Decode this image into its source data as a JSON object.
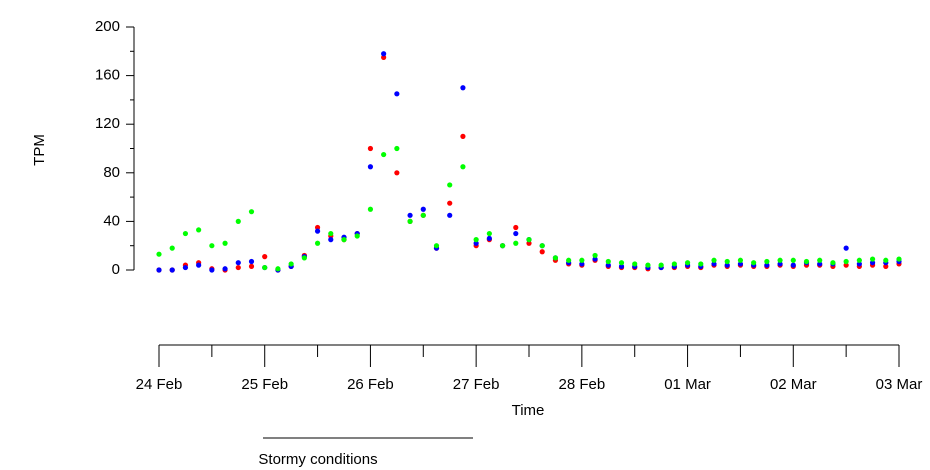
{
  "chart_data": {
    "type": "scatter",
    "y_label": "TPM",
    "x_label": "Time",
    "annotation": "Stormy conditions",
    "x": [
      0,
      0.125,
      0.25,
      0.375,
      0.5,
      0.625,
      0.75,
      0.875,
      1,
      1.125,
      1.25,
      1.375,
      1.5,
      1.625,
      1.75,
      1.875,
      2,
      2.125,
      2.25,
      2.375,
      2.5,
      2.625,
      2.75,
      2.875,
      3,
      3.125,
      3.25,
      3.375,
      3.5,
      3.625,
      3.75,
      3.875,
      4,
      4.125,
      4.25,
      4.375,
      4.5,
      4.625,
      4.75,
      4.875,
      5,
      5.125,
      5.25,
      5.375,
      5.5,
      5.625,
      5.75,
      5.875,
      6,
      6.125,
      6.25,
      6.375,
      6.5,
      6.625,
      6.75,
      6.875,
      7
    ],
    "series": [
      {
        "color": "#ff0000",
        "values": [
          0,
          0,
          4,
          6,
          1,
          0,
          2,
          3,
          11,
          0,
          3,
          12,
          35,
          28,
          25,
          30,
          100,
          175,
          80,
          40,
          45,
          18,
          55,
          110,
          20,
          25,
          20,
          35,
          22,
          15,
          8,
          5,
          4,
          8,
          3,
          2,
          2,
          1,
          2,
          2,
          3,
          2,
          4,
          3,
          4,
          3,
          3,
          4,
          3,
          4,
          4,
          3,
          4,
          3,
          4,
          3,
          5
        ]
      },
      {
        "color": "#0000ff",
        "values": [
          0,
          0,
          2,
          4,
          0,
          1,
          6,
          7,
          2,
          0,
          3,
          11,
          32,
          25,
          27,
          30,
          85,
          178,
          145,
          45,
          50,
          18,
          45,
          150,
          22,
          26,
          20,
          30,
          25,
          20,
          10,
          6,
          5,
          9,
          4,
          3,
          3,
          2,
          2,
          3,
          4,
          3,
          5,
          4,
          5,
          4,
          4,
          5,
          4,
          6,
          5,
          5,
          18,
          5,
          6,
          6,
          7
        ]
      },
      {
        "color": "#00ff00",
        "values": [
          13,
          18,
          30,
          33,
          20,
          22,
          40,
          48,
          2,
          1,
          5,
          10,
          22,
          30,
          25,
          28,
          50,
          95,
          100,
          40,
          45,
          20,
          70,
          85,
          25,
          30,
          20,
          22,
          25,
          20,
          10,
          8,
          8,
          12,
          7,
          6,
          5,
          4,
          4,
          5,
          6,
          5,
          8,
          7,
          8,
          6,
          7,
          8,
          8,
          7,
          8,
          6,
          7,
          8,
          9,
          8,
          9
        ]
      }
    ],
    "xlim": [
      0,
      7
    ],
    "xticks": [
      {
        "value": 0,
        "label": "24 Feb"
      },
      {
        "value": 1,
        "label": "25 Feb"
      },
      {
        "value": 2,
        "label": "26 Feb"
      },
      {
        "value": 3,
        "label": "27 Feb"
      },
      {
        "value": 4,
        "label": "28 Feb"
      },
      {
        "value": 5,
        "label": "01 Mar"
      },
      {
        "value": 6,
        "label": "02 Mar"
      },
      {
        "value": 7,
        "label": "03 Mar"
      }
    ],
    "ylim": [
      0,
      200
    ],
    "yticks": [
      0,
      40,
      80,
      120,
      160,
      200
    ]
  }
}
